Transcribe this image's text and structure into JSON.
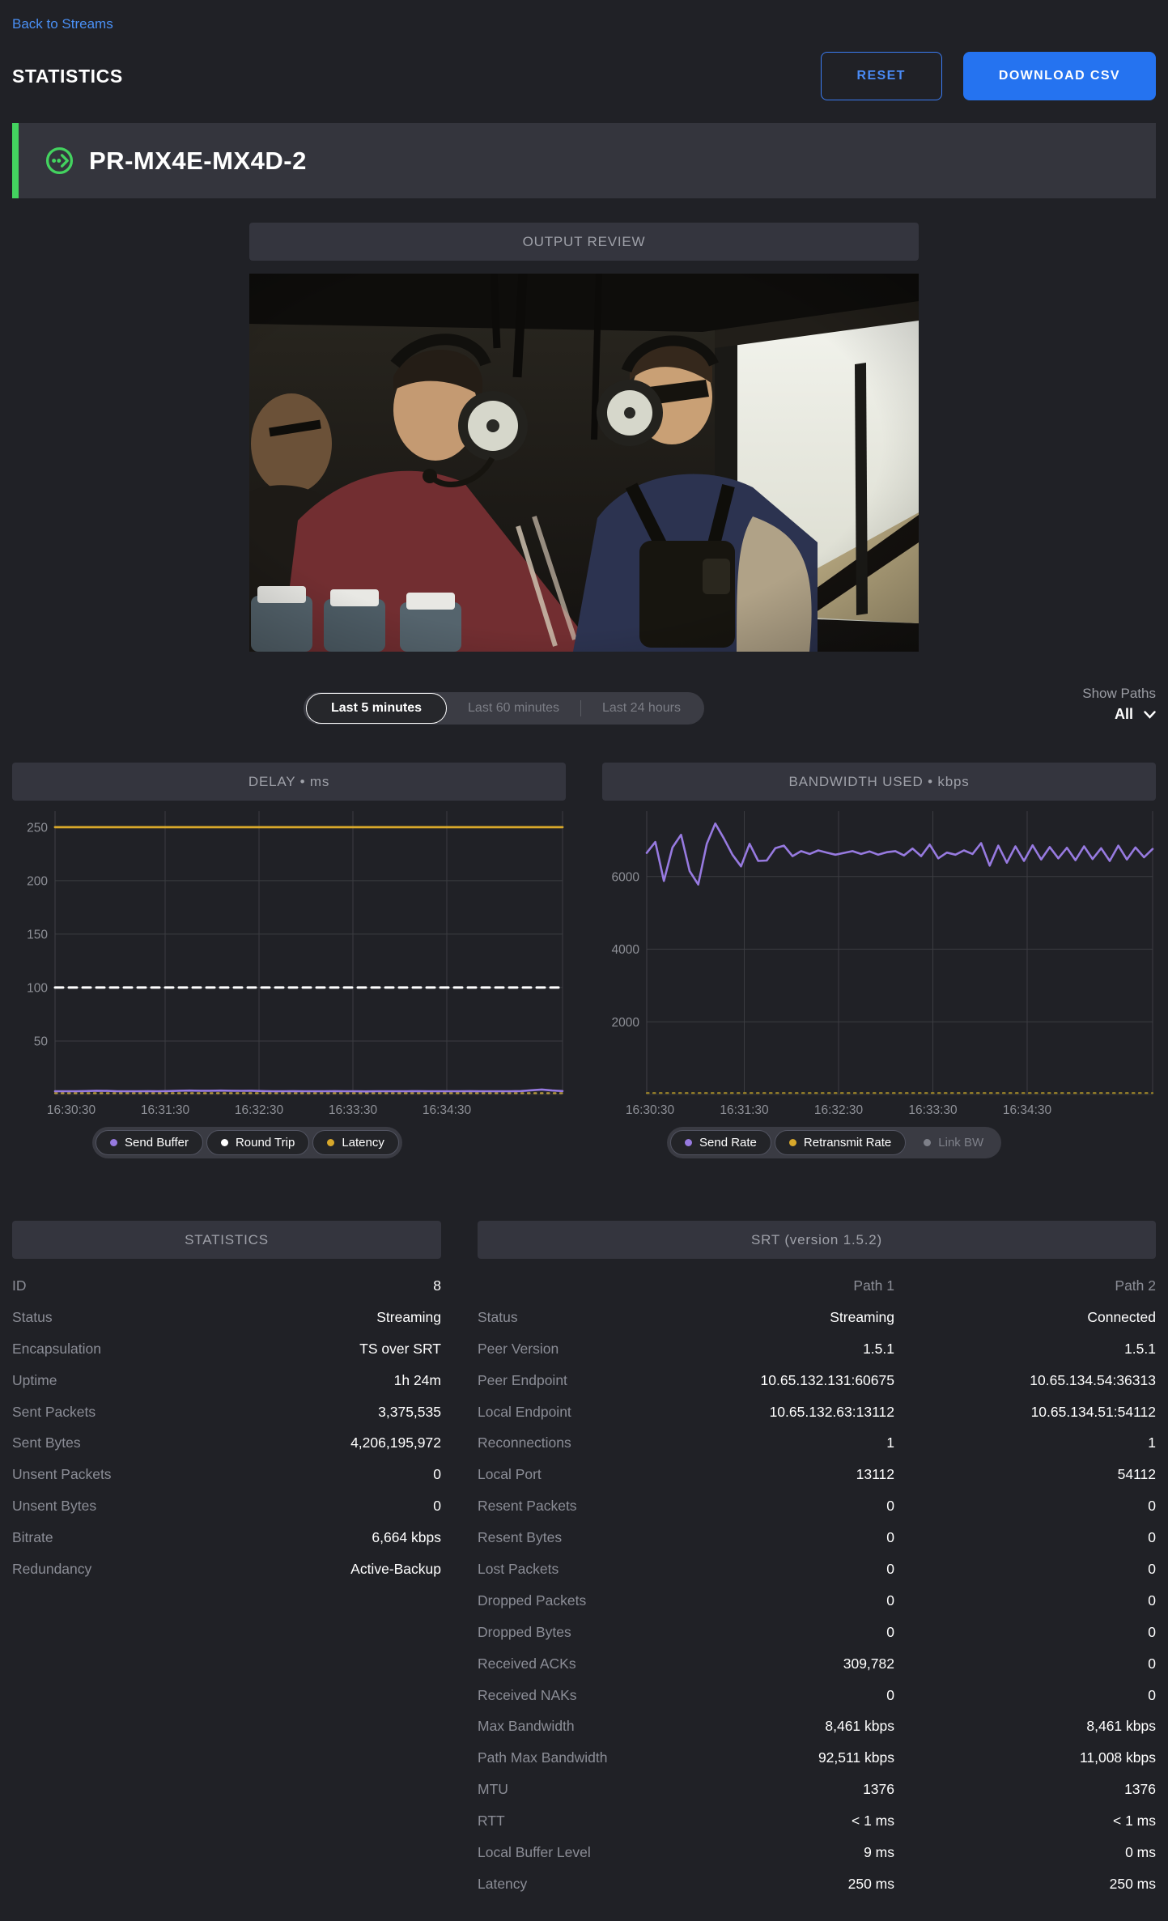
{
  "page": {
    "back_link": "Back to Streams",
    "title": "STATISTICS"
  },
  "toolbar": {
    "reset_label": "RESET",
    "download_csv_label": "DOWNLOAD CSV"
  },
  "stream": {
    "name": "PR-MX4E-MX4D-2",
    "status_icon": "stream-active-icon",
    "accent_color": "#43d35f"
  },
  "output_review": {
    "header": "OUTPUT REVIEW",
    "video_description": "Crew members wearing aviation headsets inside a helicopter cabin, bright window on the right, water bottles in the foreground"
  },
  "time_range": {
    "options": [
      {
        "label": "Last 5 minutes",
        "selected": true
      },
      {
        "label": "Last 60 minutes",
        "selected": false
      },
      {
        "label": "Last 24 hours",
        "selected": false
      }
    ]
  },
  "show_paths": {
    "label": "Show Paths",
    "value": "All"
  },
  "chart_data": [
    {
      "type": "line",
      "title": "DELAY • ms",
      "x_ticks": [
        "16:30:30",
        "16:31:30",
        "16:32:30",
        "16:33:30",
        "16:34:30"
      ],
      "y_ticks": [
        50,
        100,
        150,
        200,
        250
      ],
      "ylim": [
        0,
        265
      ],
      "grid": true,
      "legend_position": "bottom",
      "legend": [
        {
          "label": "Send Buffer",
          "color": "#977ae0",
          "enabled": true
        },
        {
          "label": "Round Trip",
          "color": "#ffffff",
          "enabled": true
        },
        {
          "label": "Latency",
          "color": "#d8a82b",
          "enabled": true
        }
      ],
      "series": [
        {
          "name": "Latency (Path 1)",
          "color": "#d8a82b",
          "style": "solid",
          "width": 2.8,
          "values": [
            250,
            250
          ]
        },
        {
          "name": "Round Trip",
          "color": "#ffffff",
          "style": "dashed",
          "width": 3,
          "values": [
            100,
            100
          ]
        },
        {
          "name": "Path 2 overlay",
          "color": "#b99a3e",
          "style": "dotted",
          "width": 2.2,
          "values": [
            1.2,
            1.2
          ]
        },
        {
          "name": "Send Buffer",
          "color": "#977ae0",
          "style": "solid",
          "width": 2.6,
          "values": [
            3,
            3,
            3,
            3.2,
            3.5,
            3.3,
            3,
            3,
            3,
            3.1,
            3,
            3.2,
            3.5,
            3.6,
            3.5,
            3.5,
            3.6,
            3.5,
            3.4,
            3.5,
            3.2,
            3,
            3,
            3.1,
            3,
            3,
            3,
            3.1,
            3,
            3,
            2.9,
            3,
            3,
            3,
            3,
            3.1,
            3,
            3,
            3,
            3,
            3.1,
            3,
            3,
            3,
            3,
            3.2,
            3.9,
            4.6,
            3.7,
            3.2
          ]
        }
      ]
    },
    {
      "type": "line",
      "title": "BANDWIDTH USED • kbps",
      "x_ticks": [
        "16:30:30",
        "16:31:30",
        "16:32:30",
        "16:33:30",
        "16:34:30"
      ],
      "y_ticks": [
        2000,
        4000,
        6000
      ],
      "ylim": [
        0,
        7800
      ],
      "grid": true,
      "legend_position": "bottom",
      "legend": [
        {
          "label": "Send Rate",
          "color": "#977ae0",
          "enabled": true
        },
        {
          "label": "Retransmit Rate",
          "color": "#d8a82b",
          "enabled": true
        },
        {
          "label": "Link BW",
          "color": "#7e8089",
          "enabled": false
        }
      ],
      "series": [
        {
          "name": "Retransmit Rate",
          "color": "#9c8428",
          "style": "dotted",
          "width": 2.2,
          "values": [
            40,
            40
          ]
        },
        {
          "name": "Send Rate",
          "color": "#977ae0",
          "style": "solid",
          "width": 2.6,
          "values": [
            6650,
            6950,
            5880,
            6800,
            7150,
            6150,
            5780,
            6900,
            7460,
            7050,
            6600,
            6280,
            6900,
            6430,
            6440,
            6780,
            6850,
            6560,
            6700,
            6620,
            6720,
            6660,
            6600,
            6650,
            6700,
            6620,
            6690,
            6600,
            6670,
            6700,
            6580,
            6770,
            6560,
            6880,
            6500,
            6660,
            6600,
            6720,
            6620,
            6920,
            6300,
            6850,
            6380,
            6830,
            6430,
            6860,
            6470,
            6810,
            6500,
            6790,
            6450,
            6830,
            6480,
            6780,
            6430,
            6850,
            6470,
            6800,
            6530,
            6760
          ]
        }
      ]
    }
  ],
  "stats_table": {
    "header": "STATISTICS",
    "rows": [
      [
        "ID",
        "8"
      ],
      [
        "Status",
        "Streaming"
      ],
      [
        "Encapsulation",
        "TS over SRT"
      ],
      [
        "Uptime",
        "1h 24m"
      ],
      [
        "Sent Packets",
        "3,375,535"
      ],
      [
        "Sent Bytes",
        "4,206,195,972"
      ],
      [
        "Unsent Packets",
        "0"
      ],
      [
        "Unsent Bytes",
        "0"
      ],
      [
        "Bitrate",
        "6,664 kbps"
      ],
      [
        "Redundancy",
        "Active-Backup"
      ]
    ]
  },
  "srt_table": {
    "header": "SRT (version 1.5.2)",
    "columns": [
      "Path 1",
      "Path 2"
    ],
    "rows": [
      [
        "Status",
        "Streaming",
        "Connected"
      ],
      [
        "Peer Version",
        "1.5.1",
        "1.5.1"
      ],
      [
        "Peer Endpoint",
        "10.65.132.131:60675",
        "10.65.134.54:36313"
      ],
      [
        "Local Endpoint",
        "10.65.132.63:13112",
        "10.65.134.51:54112"
      ],
      [
        "Reconnections",
        "1",
        "1"
      ],
      [
        "Local Port",
        "13112",
        "54112"
      ],
      [
        "Resent Packets",
        "0",
        "0"
      ],
      [
        "Resent Bytes",
        "0",
        "0"
      ],
      [
        "Lost Packets",
        "0",
        "0"
      ],
      [
        "Dropped Packets",
        "0",
        "0"
      ],
      [
        "Dropped Bytes",
        "0",
        "0"
      ],
      [
        "Received ACKs",
        "309,782",
        "0"
      ],
      [
        "Received NAKs",
        "0",
        "0"
      ],
      [
        "Max Bandwidth",
        "8,461 kbps",
        "8,461 kbps"
      ],
      [
        "Path Max Bandwidth",
        "92,511 kbps",
        "11,008 kbps"
      ],
      [
        "MTU",
        "1376",
        "1376"
      ],
      [
        "RTT",
        "< 1 ms",
        "< 1 ms"
      ],
      [
        "Local Buffer Level",
        "9 ms",
        "0 ms"
      ],
      [
        "Latency",
        "250 ms",
        "250 ms"
      ]
    ]
  },
  "colors": {
    "background": "#202126",
    "panel": "#34353e",
    "accent_green": "#43d35f",
    "link_blue": "#4a90f5",
    "button_blue": "#2573f0",
    "series_purple": "#977ae0",
    "series_yellow": "#d8a82b",
    "grid": "#3b3c41",
    "label_gray": "#8b8d96"
  }
}
